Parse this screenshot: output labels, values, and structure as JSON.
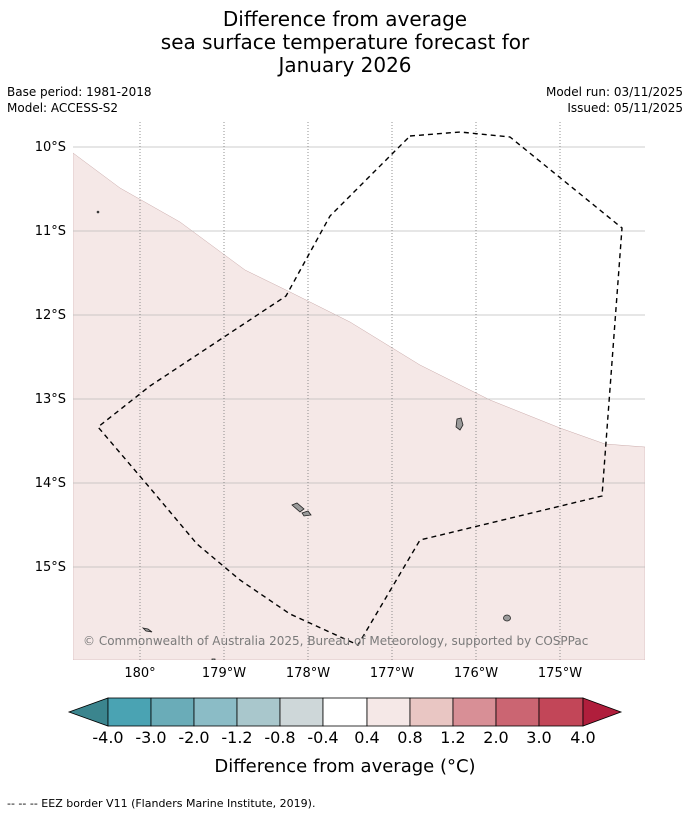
{
  "title": {
    "line1": "Difference from average",
    "line2": "sea surface temperature forecast for",
    "line3": "January 2026"
  },
  "meta": {
    "base_period": "Base period: 1981-2018",
    "model": "Model: ACCESS-S2",
    "model_run": "Model run: 03/11/2025",
    "issued": "Issued: 05/11/2025"
  },
  "map": {
    "lat_labels": [
      "10°S",
      "11°S",
      "12°S",
      "13°S",
      "14°S",
      "15°S"
    ],
    "lon_labels": [
      "180°",
      "179°W",
      "178°W",
      "177°W",
      "176°W",
      "175°W"
    ],
    "copyright": "© Commonwealth of Australia 2025, Bureau of Meteorology, supported by COSPPac",
    "anomaly_color": "#f5e8e7",
    "land_color": "#9a9a9a"
  },
  "colorbar": {
    "ticks": [
      "-4.0",
      "-3.0",
      "-2.0",
      "-1.2",
      "-0.8",
      "-0.4",
      "0.4",
      "0.8",
      "1.2",
      "2.0",
      "3.0",
      "4.0"
    ],
    "colors": [
      "#3b858e",
      "#4aa3b3",
      "#6aacb8",
      "#8bbcc6",
      "#a9c7cc",
      "#ced7d9",
      "#ffffff",
      "#f5e8e7",
      "#e9c6c3",
      "#d88f96",
      "#cb6572",
      "#c24658",
      "#b01e3c"
    ],
    "label": "Difference from average (°C)"
  },
  "footer": "--  --  -- EEZ border V11 (Flanders Marine Institute, 2019)."
}
